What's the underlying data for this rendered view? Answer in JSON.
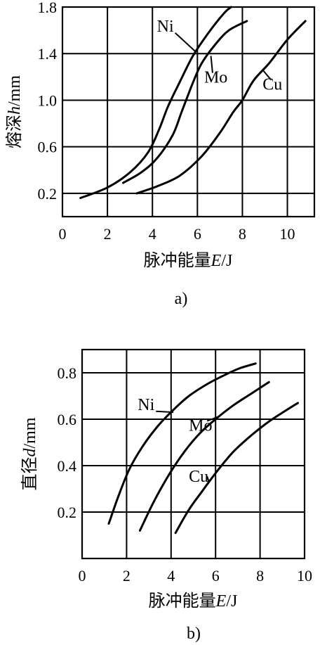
{
  "chart_data": [
    {
      "type": "line",
      "caption": "a)",
      "ylabel_prefix": "熔深",
      "ylabel_var": "h",
      "ylabel_unit": "/mm",
      "xlabel_prefix": "脉冲能量",
      "xlabel_var": "E",
      "xlabel_unit": "/J",
      "xlim": [
        0,
        11.2
      ],
      "ylim": [
        0,
        1.8
      ],
      "xticks": [
        0,
        2,
        4,
        6,
        8,
        10
      ],
      "xtick_labels": [
        "0",
        "2",
        "4",
        "6",
        "8",
        "10"
      ],
      "yticks": [
        0.2,
        0.6,
        1.0,
        1.4,
        1.8
      ],
      "ytick_labels": [
        "0.2",
        "0.6",
        "1.0",
        "1.4",
        "1.8"
      ],
      "xgrid": [
        2,
        4,
        6,
        8,
        10
      ],
      "ygrid": [
        0.2,
        0.6,
        1.0,
        1.4
      ],
      "series": [
        {
          "name": "Ni",
          "x": [
            0.8,
            2.0,
            3.0,
            3.8,
            4.3,
            4.7,
            5.2,
            5.8,
            6.5,
            7.2,
            7.5
          ],
          "y": [
            0.16,
            0.25,
            0.38,
            0.55,
            0.75,
            0.95,
            1.15,
            1.38,
            1.58,
            1.75,
            1.8
          ],
          "label_x": 4.2,
          "label_y": 1.59,
          "anchor_x": 5.9,
          "anchor_y": 1.42
        },
        {
          "name": "Mo",
          "x": [
            2.7,
            3.5,
            4.2,
            4.9,
            5.3,
            5.8,
            6.2,
            6.8,
            7.4,
            8.2
          ],
          "y": [
            0.29,
            0.38,
            0.5,
            0.7,
            0.9,
            1.15,
            1.32,
            1.48,
            1.6,
            1.68
          ],
          "label_x": 6.3,
          "label_y": 1.15,
          "anchor_x": 6.6,
          "anchor_y": 1.38
        },
        {
          "name": "Cu",
          "x": [
            3.3,
            4.2,
            5.2,
            6.2,
            7.0,
            7.6,
            8.0,
            8.5,
            9.2,
            10.0,
            10.8
          ],
          "y": [
            0.2,
            0.26,
            0.35,
            0.52,
            0.72,
            0.9,
            1.0,
            1.17,
            1.32,
            1.52,
            1.68
          ],
          "label_x": 8.9,
          "label_y": 1.09,
          "anchor_x": 8.9,
          "anchor_y": 1.26
        }
      ]
    },
    {
      "type": "line",
      "caption": "b)",
      "ylabel_prefix": "直径",
      "ylabel_var": "d",
      "ylabel_unit": "/mm",
      "xlabel_prefix": "脉冲能量",
      "xlabel_var": "E",
      "xlabel_unit": "/J",
      "xlim": [
        0,
        10
      ],
      "ylim": [
        0,
        0.9
      ],
      "xticks": [
        0,
        2,
        4,
        6,
        8,
        10
      ],
      "xtick_labels": [
        "0",
        "2",
        "4",
        "6",
        "8",
        "10"
      ],
      "yticks": [
        0.2,
        0.4,
        0.6,
        0.8
      ],
      "ytick_labels": [
        "0.2",
        "0.4",
        "0.6",
        "0.8"
      ],
      "xgrid": [
        2,
        4,
        6,
        8
      ],
      "ygrid": [
        0.2,
        0.4,
        0.6,
        0.8
      ],
      "series": [
        {
          "name": "Ni",
          "x": [
            1.2,
            1.6,
            2.1,
            2.7,
            3.4,
            4.1,
            4.8,
            5.6,
            6.4,
            7.1,
            7.8
          ],
          "y": [
            0.15,
            0.26,
            0.38,
            0.48,
            0.57,
            0.64,
            0.7,
            0.75,
            0.79,
            0.82,
            0.84
          ],
          "label_x": 2.5,
          "label_y": 0.64,
          "anchor_x": 4.1,
          "anchor_y": 0.63
        },
        {
          "name": "Mo",
          "x": [
            2.6,
            3.2,
            3.9,
            4.6,
            5.3,
            6.0,
            6.8,
            7.6,
            8.4
          ],
          "y": [
            0.12,
            0.24,
            0.36,
            0.46,
            0.54,
            0.6,
            0.66,
            0.71,
            0.76
          ],
          "label_x": 4.8,
          "label_y": 0.55,
          "anchor_x": 6.1,
          "anchor_y": 0.61
        },
        {
          "name": "Cu",
          "x": [
            4.2,
            4.8,
            5.4,
            6.1,
            6.8,
            7.6,
            8.4,
            9.2,
            9.7
          ],
          "y": [
            0.11,
            0.21,
            0.29,
            0.38,
            0.46,
            0.53,
            0.59,
            0.64,
            0.67
          ],
          "label_x": 4.8,
          "label_y": 0.33,
          "anchor_x": 5.7,
          "anchor_y": 0.33
        }
      ]
    }
  ]
}
